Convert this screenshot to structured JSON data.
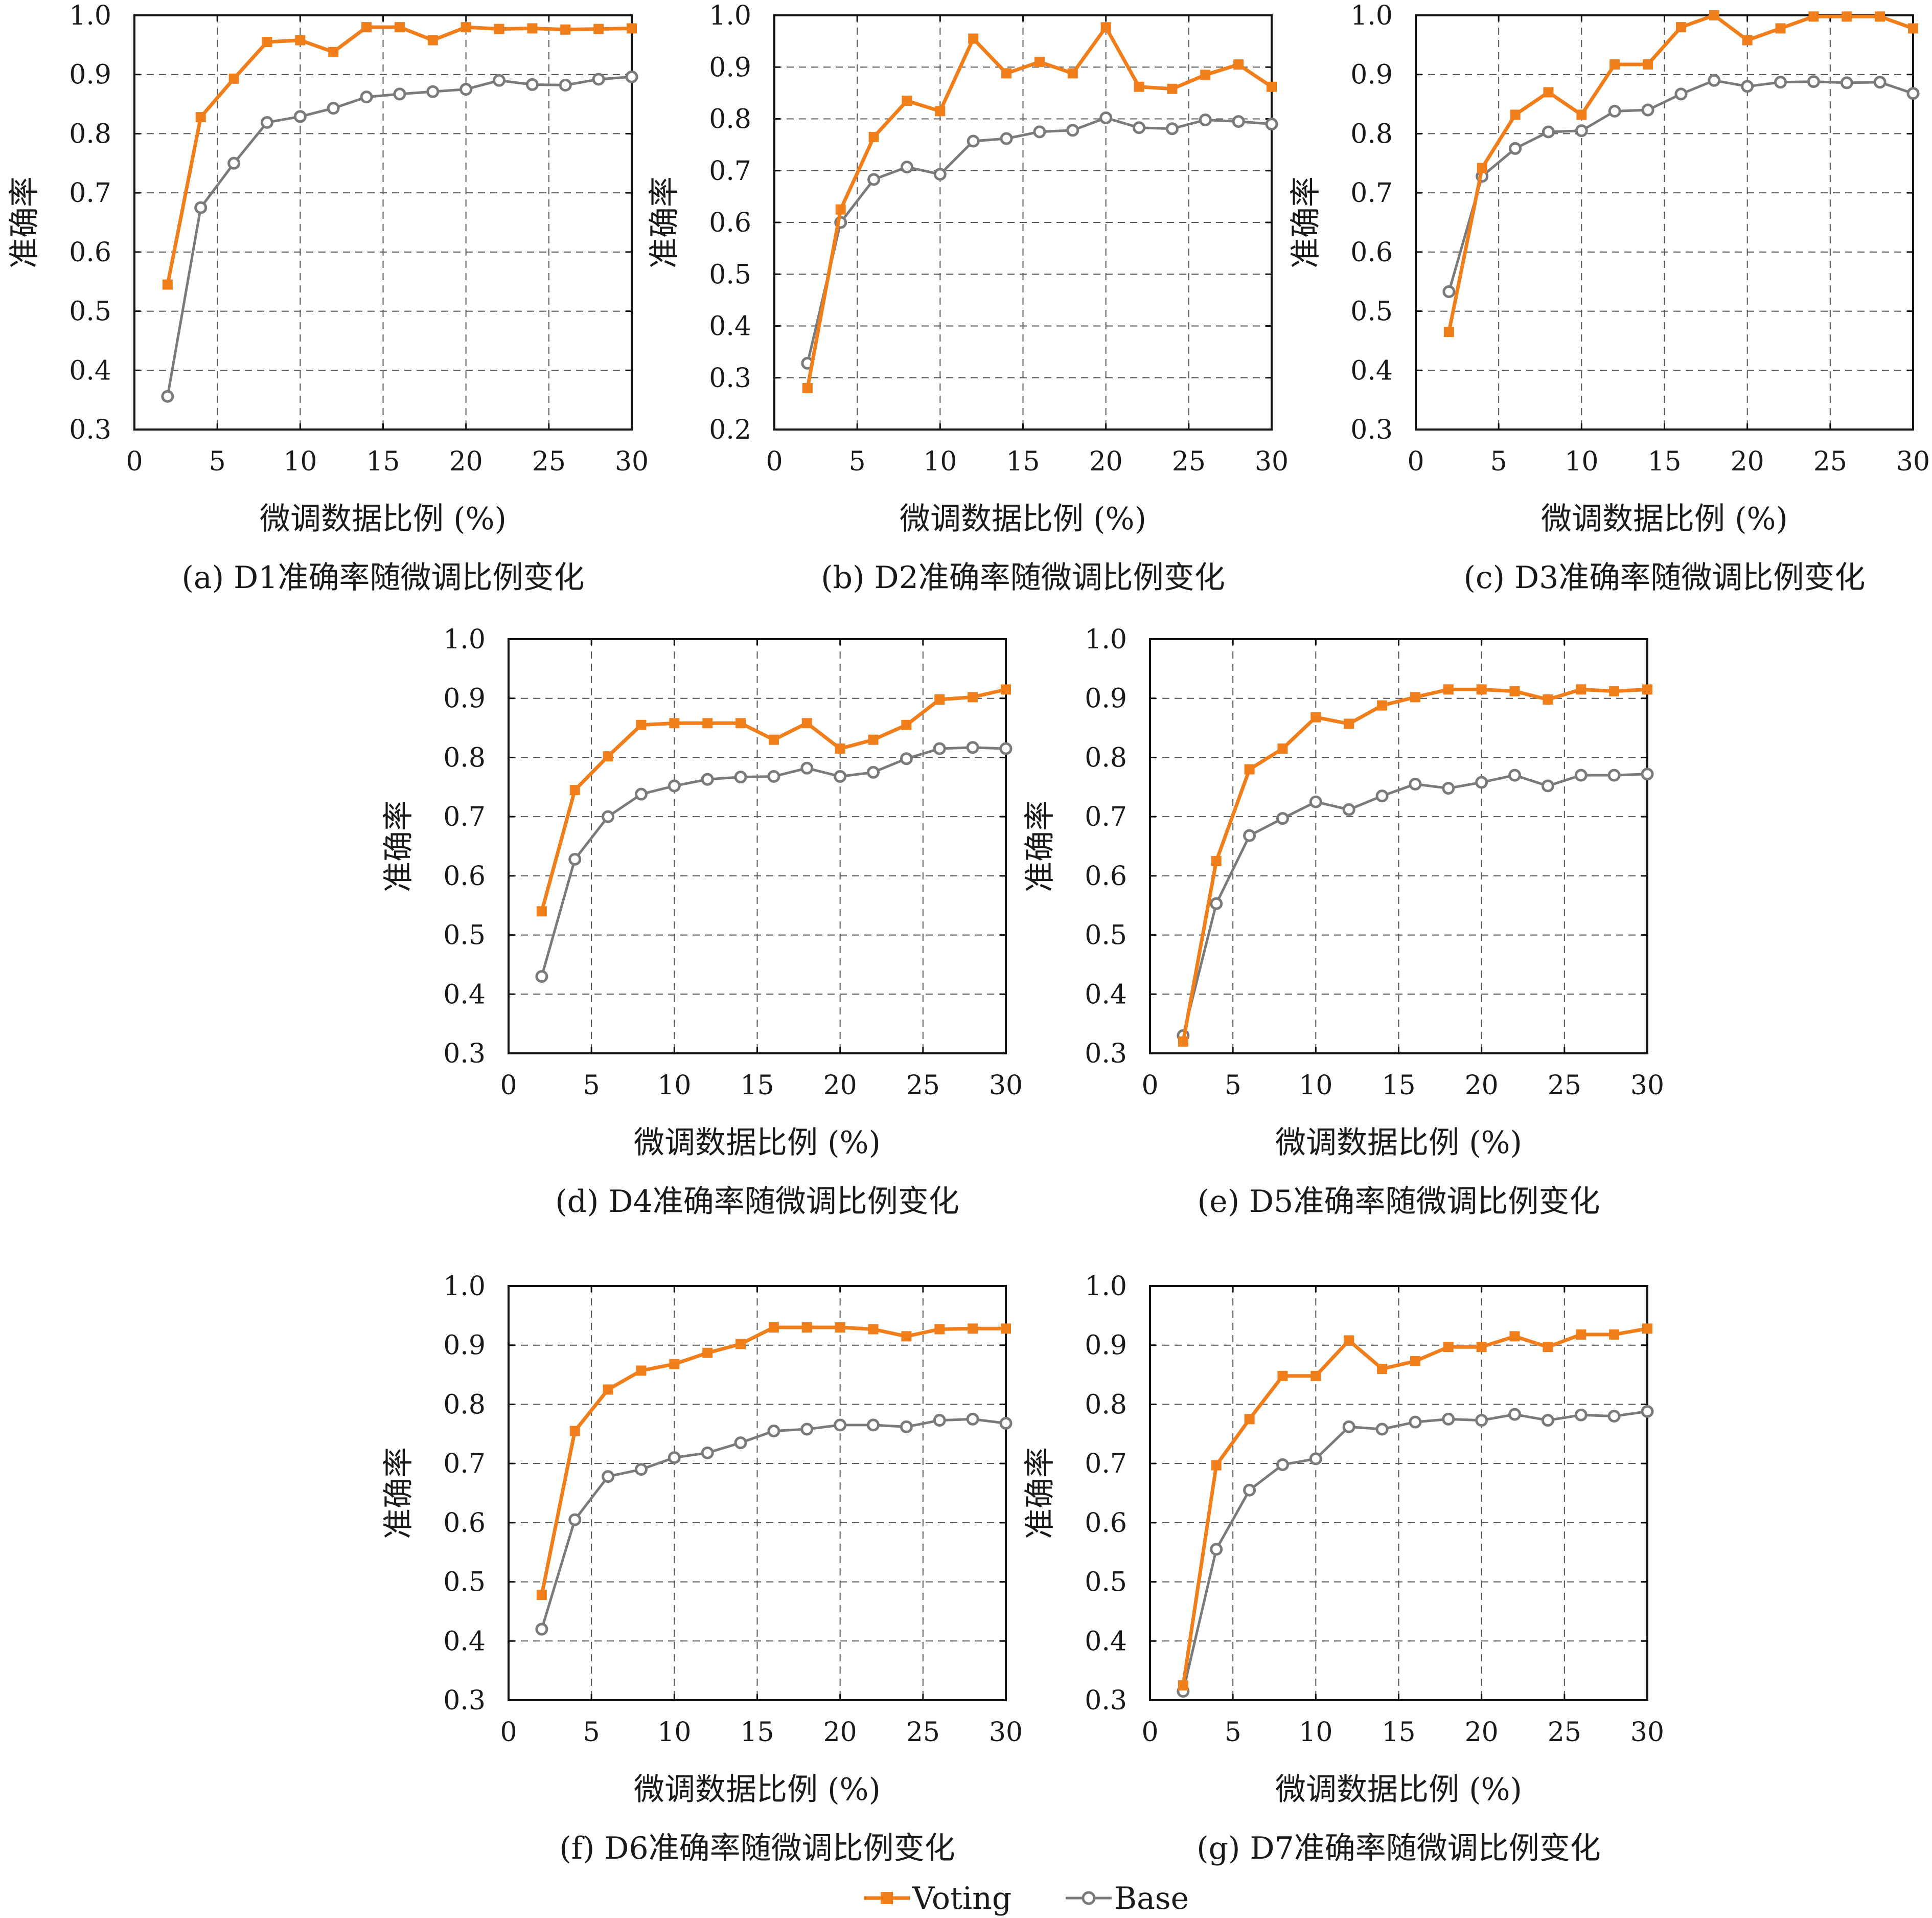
{
  "colors": {
    "voting": "#f07f1b",
    "base": "#7a7a7a"
  },
  "legend": {
    "voting_label": "Voting",
    "base_label": "Base"
  },
  "chart_data": [
    {
      "type": "line",
      "caption": "(a) D1准确率随微调比例变化",
      "xlabel": "微调数据比例 (%)",
      "ylabel": "准确率",
      "xlim": [
        0,
        30
      ],
      "ylim": [
        0.3,
        1.0
      ],
      "xticks": [
        0,
        5,
        10,
        15,
        20,
        25,
        30
      ],
      "yticks": [
        0.3,
        0.4,
        0.5,
        0.6,
        0.7,
        0.8,
        0.9,
        1.0
      ],
      "x": [
        2,
        4,
        6,
        8,
        10,
        12,
        14,
        16,
        18,
        20,
        22,
        24,
        26,
        28,
        30
      ],
      "series": [
        {
          "name": "Voting",
          "values": [
            0.545,
            0.828,
            0.893,
            0.955,
            0.958,
            0.938,
            0.98,
            0.98,
            0.958,
            0.98,
            0.977,
            0.978,
            0.976,
            0.977,
            0.978
          ]
        },
        {
          "name": "Base",
          "values": [
            0.356,
            0.675,
            0.75,
            0.819,
            0.829,
            0.843,
            0.862,
            0.867,
            0.871,
            0.875,
            0.89,
            0.883,
            0.882,
            0.892,
            0.896
          ]
        }
      ]
    },
    {
      "type": "line",
      "caption": "(b) D2准确率随微调比例变化",
      "xlabel": "微调数据比例 (%)",
      "ylabel": "准确率",
      "xlim": [
        0,
        30
      ],
      "ylim": [
        0.2,
        1.0
      ],
      "xticks": [
        0,
        5,
        10,
        15,
        20,
        25,
        30
      ],
      "yticks": [
        0.2,
        0.3,
        0.4,
        0.5,
        0.6,
        0.7,
        0.8,
        0.9,
        1.0
      ],
      "x": [
        2,
        4,
        6,
        8,
        10,
        12,
        14,
        16,
        18,
        20,
        22,
        24,
        26,
        28,
        30
      ],
      "series": [
        {
          "name": "Voting",
          "values": [
            0.28,
            0.625,
            0.765,
            0.835,
            0.815,
            0.955,
            0.888,
            0.91,
            0.888,
            0.977,
            0.862,
            0.858,
            0.885,
            0.905,
            0.862
          ]
        },
        {
          "name": "Base",
          "values": [
            0.328,
            0.6,
            0.683,
            0.707,
            0.693,
            0.757,
            0.762,
            0.775,
            0.778,
            0.802,
            0.783,
            0.781,
            0.798,
            0.795,
            0.79
          ]
        }
      ]
    },
    {
      "type": "line",
      "caption": "(c) D3准确率随微调比例变化",
      "xlabel": "微调数据比例 (%)",
      "ylabel": "准确率",
      "xlim": [
        0,
        30
      ],
      "ylim": [
        0.3,
        1.0
      ],
      "xticks": [
        0,
        5,
        10,
        15,
        20,
        25,
        30
      ],
      "yticks": [
        0.3,
        0.4,
        0.5,
        0.6,
        0.7,
        0.8,
        0.9,
        1.0
      ],
      "x": [
        2,
        4,
        6,
        8,
        10,
        12,
        14,
        16,
        18,
        20,
        22,
        24,
        26,
        28,
        30
      ],
      "series": [
        {
          "name": "Voting",
          "values": [
            0.465,
            0.742,
            0.832,
            0.87,
            0.832,
            0.917,
            0.917,
            0.98,
            1.0,
            0.958,
            0.978,
            0.998,
            0.998,
            0.998,
            0.978
          ]
        },
        {
          "name": "Base",
          "values": [
            0.533,
            0.728,
            0.775,
            0.803,
            0.805,
            0.838,
            0.84,
            0.867,
            0.89,
            0.88,
            0.887,
            0.888,
            0.886,
            0.887,
            0.868
          ]
        }
      ]
    },
    {
      "type": "line",
      "caption": "(d) D4准确率随微调比例变化",
      "xlabel": "微调数据比例 (%)",
      "ylabel": "准确率",
      "xlim": [
        0,
        30
      ],
      "ylim": [
        0.3,
        1.0
      ],
      "xticks": [
        0,
        5,
        10,
        15,
        20,
        25,
        30
      ],
      "yticks": [
        0.3,
        0.4,
        0.5,
        0.6,
        0.7,
        0.8,
        0.9,
        1.0
      ],
      "x": [
        2,
        4,
        6,
        8,
        10,
        12,
        14,
        16,
        18,
        20,
        22,
        24,
        26,
        28,
        30
      ],
      "series": [
        {
          "name": "Voting",
          "values": [
            0.54,
            0.745,
            0.802,
            0.855,
            0.858,
            0.858,
            0.858,
            0.83,
            0.858,
            0.815,
            0.83,
            0.855,
            0.898,
            0.902,
            0.915
          ]
        },
        {
          "name": "Base",
          "values": [
            0.43,
            0.628,
            0.7,
            0.738,
            0.752,
            0.763,
            0.767,
            0.768,
            0.782,
            0.768,
            0.775,
            0.798,
            0.815,
            0.817,
            0.815
          ]
        }
      ]
    },
    {
      "type": "line",
      "caption": "(e) D5准确率随微调比例变化",
      "xlabel": "微调数据比例 (%)",
      "ylabel": "准确率",
      "xlim": [
        0,
        30
      ],
      "ylim": [
        0.3,
        1.0
      ],
      "xticks": [
        0,
        5,
        10,
        15,
        20,
        25,
        30
      ],
      "yticks": [
        0.3,
        0.4,
        0.5,
        0.6,
        0.7,
        0.8,
        0.9,
        1.0
      ],
      "x": [
        2,
        4,
        6,
        8,
        10,
        12,
        14,
        16,
        18,
        20,
        22,
        24,
        26,
        28,
        30
      ],
      "series": [
        {
          "name": "Voting",
          "values": [
            0.32,
            0.625,
            0.78,
            0.815,
            0.868,
            0.857,
            0.888,
            0.902,
            0.915,
            0.915,
            0.912,
            0.898,
            0.915,
            0.912,
            0.915
          ]
        },
        {
          "name": "Base",
          "values": [
            0.33,
            0.553,
            0.668,
            0.697,
            0.725,
            0.712,
            0.735,
            0.755,
            0.748,
            0.758,
            0.77,
            0.752,
            0.77,
            0.77,
            0.772
          ]
        }
      ]
    },
    {
      "type": "line",
      "caption": "(f) D6准确率随微调比例变化",
      "xlabel": "微调数据比例 (%)",
      "ylabel": "准确率",
      "xlim": [
        0,
        30
      ],
      "ylim": [
        0.3,
        1.0
      ],
      "xticks": [
        0,
        5,
        10,
        15,
        20,
        25,
        30
      ],
      "yticks": [
        0.3,
        0.4,
        0.5,
        0.6,
        0.7,
        0.8,
        0.9,
        1.0
      ],
      "x": [
        2,
        4,
        6,
        8,
        10,
        12,
        14,
        16,
        18,
        20,
        22,
        24,
        26,
        28,
        30
      ],
      "series": [
        {
          "name": "Voting",
          "values": [
            0.478,
            0.755,
            0.825,
            0.857,
            0.868,
            0.887,
            0.902,
            0.93,
            0.93,
            0.93,
            0.927,
            0.915,
            0.927,
            0.928,
            0.928
          ]
        },
        {
          "name": "Base",
          "values": [
            0.42,
            0.605,
            0.678,
            0.69,
            0.71,
            0.718,
            0.735,
            0.755,
            0.758,
            0.765,
            0.765,
            0.762,
            0.773,
            0.775,
            0.768
          ]
        }
      ]
    },
    {
      "type": "line",
      "caption": "(g) D7准确率随微调比例变化",
      "xlabel": "微调数据比例 (%)",
      "ylabel": "准确率",
      "xlim": [
        0,
        30
      ],
      "ylim": [
        0.3,
        1.0
      ],
      "xticks": [
        0,
        5,
        10,
        15,
        20,
        25,
        30
      ],
      "yticks": [
        0.3,
        0.4,
        0.5,
        0.6,
        0.7,
        0.8,
        0.9,
        1.0
      ],
      "x": [
        2,
        4,
        6,
        8,
        10,
        12,
        14,
        16,
        18,
        20,
        22,
        24,
        26,
        28,
        30
      ],
      "series": [
        {
          "name": "Voting",
          "values": [
            0.325,
            0.697,
            0.775,
            0.848,
            0.848,
            0.908,
            0.86,
            0.873,
            0.897,
            0.897,
            0.915,
            0.897,
            0.918,
            0.918,
            0.928
          ]
        },
        {
          "name": "Base",
          "values": [
            0.315,
            0.555,
            0.655,
            0.698,
            0.708,
            0.762,
            0.758,
            0.77,
            0.775,
            0.773,
            0.783,
            0.773,
            0.782,
            0.78,
            0.788
          ]
        }
      ]
    }
  ]
}
